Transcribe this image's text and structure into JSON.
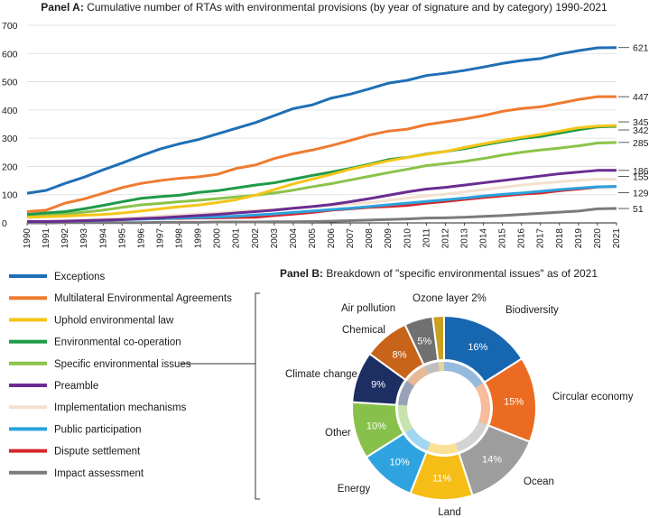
{
  "chart_data": [
    {
      "type": "line",
      "title_prefix": "Panel A:",
      "title": "Cumulative number of RTAs with environmental provisions (by year of signature and by category) 1990-2021",
      "xlabel": "",
      "ylabel": "",
      "ylim": [
        0,
        700
      ],
      "yticks": [
        "0",
        "100",
        "200",
        "300",
        "400",
        "500",
        "600",
        "700"
      ],
      "x": [
        "1990",
        "1991",
        "1992",
        "1993",
        "1994",
        "1995",
        "1996",
        "1997",
        "1998",
        "1999",
        "2000",
        "2001",
        "2002",
        "2003",
        "2004",
        "2005",
        "2006",
        "2007",
        "2008",
        "2009",
        "2010",
        "2011",
        "2012",
        "2013",
        "2014",
        "2015",
        "2016",
        "2017",
        "2018",
        "2019",
        "2020",
        "2021"
      ],
      "grid": true,
      "series": [
        {
          "name": "Exceptions",
          "color": "#1f6fb5",
          "end_label": "621",
          "values": [
            105,
            115,
            140,
            162,
            188,
            212,
            238,
            262,
            280,
            295,
            315,
            335,
            355,
            380,
            405,
            418,
            442,
            456,
            475,
            495,
            505,
            522,
            530,
            540,
            552,
            565,
            575,
            582,
            598,
            610,
            620,
            621
          ]
        },
        {
          "name": "Multilateral Environmental Agreements",
          "color": "#ee7b30",
          "end_label": "447",
          "values": [
            40,
            45,
            70,
            85,
            105,
            125,
            140,
            150,
            158,
            163,
            172,
            193,
            205,
            228,
            245,
            258,
            274,
            292,
            311,
            325,
            332,
            348,
            358,
            368,
            380,
            395,
            405,
            411,
            424,
            437,
            447,
            447
          ]
        },
        {
          "name": "Uphold environmental law",
          "color": "#f5c518",
          "end_label": "345",
          "values": [
            20,
            22,
            24,
            27,
            30,
            35,
            42,
            50,
            57,
            63,
            72,
            82,
            98,
            118,
            138,
            155,
            172,
            190,
            205,
            220,
            232,
            243,
            253,
            267,
            280,
            292,
            303,
            313,
            325,
            337,
            343,
            345
          ]
        },
        {
          "name": "Environmental co-operation",
          "color": "#1e9a48",
          "end_label": "342",
          "values": [
            30,
            35,
            40,
            50,
            62,
            75,
            87,
            93,
            98,
            108,
            114,
            124,
            134,
            142,
            155,
            168,
            180,
            193,
            208,
            224,
            232,
            244,
            253,
            263,
            276,
            288,
            299,
            306,
            318,
            330,
            340,
            342
          ]
        },
        {
          "name": "Specific environmental issues",
          "color": "#8bc34a",
          "end_label": "285",
          "values": [
            22,
            26,
            32,
            38,
            45,
            55,
            64,
            69,
            75,
            80,
            86,
            92,
            98,
            106,
            116,
            128,
            139,
            152,
            165,
            178,
            190,
            203,
            210,
            218,
            228,
            240,
            250,
            258,
            265,
            273,
            283,
            285
          ]
        },
        {
          "name": "Preamble",
          "color": "#6a2c91",
          "end_label": "186",
          "values": [
            5,
            5,
            6,
            8,
            10,
            12,
            15,
            18,
            22,
            26,
            30,
            35,
            40,
            45,
            52,
            58,
            65,
            75,
            86,
            98,
            110,
            120,
            126,
            134,
            142,
            150,
            158,
            166,
            174,
            180,
            186,
            186
          ]
        },
        {
          "name": "Implementation mechanisms",
          "color": "#f3e1d0",
          "end_label": "155",
          "values": [
            5,
            6,
            8,
            10,
            13,
            16,
            20,
            24,
            28,
            32,
            36,
            40,
            44,
            48,
            52,
            57,
            62,
            67,
            72,
            80,
            88,
            96,
            102,
            110,
            118,
            126,
            134,
            140,
            146,
            151,
            155,
            155
          ]
        },
        {
          "name": "Public participation",
          "color": "#2aa3dc",
          "end_label": "",
          "values": [
            5,
            5,
            6,
            7,
            9,
            11,
            13,
            15,
            17,
            19,
            21,
            24,
            28,
            32,
            37,
            42,
            47,
            52,
            58,
            64,
            70,
            76,
            82,
            88,
            95,
            101,
            106,
            112,
            118,
            123,
            128,
            129
          ]
        },
        {
          "name": "Dispute settlement",
          "color": "#d7262b",
          "end_label": "129",
          "values": [
            5,
            5,
            6,
            7,
            10,
            12,
            14,
            15,
            16,
            17,
            18,
            19,
            20,
            26,
            31,
            37,
            45,
            50,
            55,
            58,
            62,
            70,
            76,
            83,
            90,
            96,
            102,
            106,
            114,
            120,
            127,
            129
          ]
        },
        {
          "name": "Impact assessment",
          "color": "#7b7b7b",
          "end_label": "51",
          "values": [
            0,
            0,
            1,
            1,
            1,
            1,
            1,
            2,
            2,
            2,
            3,
            3,
            3,
            4,
            4,
            5,
            6,
            8,
            10,
            12,
            14,
            17,
            18,
            20,
            23,
            26,
            30,
            34,
            38,
            42,
            50,
            51
          ]
        }
      ]
    },
    {
      "type": "pie",
      "title_prefix": "Panel B:",
      "title": "Breakdown of \"specific environmental issues\" as of 2021",
      "slices": [
        {
          "label": "Biodiversity",
          "value": 16,
          "pct_label": "16%",
          "color": "#1766b0"
        },
        {
          "label": "Circular economy",
          "value": 15,
          "pct_label": "15%",
          "color": "#ec6b22"
        },
        {
          "label": "Ocean",
          "value": 14,
          "pct_label": "14%",
          "color": "#9d9d9d"
        },
        {
          "label": "Land",
          "value": 11,
          "pct_label": "11%",
          "color": "#f6bd16"
        },
        {
          "label": "Energy",
          "value": 10,
          "pct_label": "10%",
          "color": "#2fa3df"
        },
        {
          "label": "Other",
          "value": 10,
          "pct_label": "10%",
          "color": "#88c04c"
        },
        {
          "label": "Climate change",
          "value": 9,
          "pct_label": "9%",
          "color": "#1d2e63"
        },
        {
          "label": "Chemical",
          "value": 8,
          "pct_label": "8%",
          "color": "#c7641a"
        },
        {
          "label": "Air pollution",
          "value": 5,
          "pct_label": "5%",
          "color": "#707070"
        },
        {
          "label": "Ozone layer 2%",
          "value": 2,
          "pct_label": "",
          "color": "#c9a020"
        }
      ]
    }
  ]
}
